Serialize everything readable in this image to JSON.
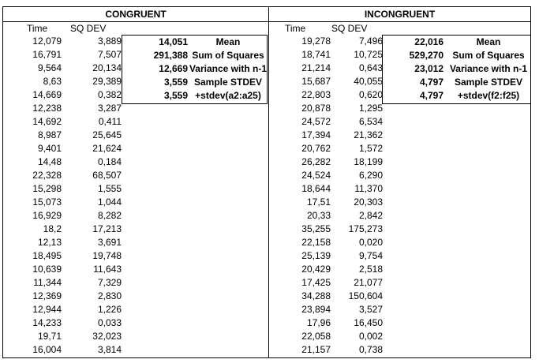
{
  "congruent": {
    "title": "CONGRUENT",
    "col_time": "Time",
    "col_sq": "SQ DEV",
    "rows": [
      [
        "12,079",
        "3,889"
      ],
      [
        "16,791",
        "7,507"
      ],
      [
        "9,564",
        "20,134"
      ],
      [
        "8,63",
        "29,389"
      ],
      [
        "14,669",
        "0,382"
      ],
      [
        "12,238",
        "3,287"
      ],
      [
        "14,692",
        "0,411"
      ],
      [
        "8,987",
        "25,645"
      ],
      [
        "9,401",
        "21,624"
      ],
      [
        "14,48",
        "0,184"
      ],
      [
        "22,328",
        "68,507"
      ],
      [
        "15,298",
        "1,555"
      ],
      [
        "15,073",
        "1,044"
      ],
      [
        "16,929",
        "8,282"
      ],
      [
        "18,2",
        "17,213"
      ],
      [
        "12,13",
        "3,691"
      ],
      [
        "18,495",
        "19,748"
      ],
      [
        "10,639",
        "11,643"
      ],
      [
        "11,344",
        "7,329"
      ],
      [
        "12,369",
        "2,830"
      ],
      [
        "12,944",
        "1,226"
      ],
      [
        "14,233",
        "0,033"
      ],
      [
        "19,71",
        "32,023"
      ],
      [
        "16,004",
        "3,814"
      ]
    ],
    "stats": [
      {
        "value": "14,051",
        "label": "Mean"
      },
      {
        "value": "291,388",
        "label": "Sum of Squares"
      },
      {
        "value": "12,669",
        "label": "Variance with n-1"
      },
      {
        "value": "3,559",
        "label": "Sample STDEV"
      },
      {
        "value": "3,559",
        "label": "+stdev(a2:a25)"
      }
    ]
  },
  "incongruent": {
    "title": "INCONGRUENT",
    "col_time": "Time",
    "col_sq": "SQ DEV",
    "rows": [
      [
        "19,278",
        "7,496"
      ],
      [
        "18,741",
        "10,725"
      ],
      [
        "21,214",
        "0,643"
      ],
      [
        "15,687",
        "40,055"
      ],
      [
        "22,803",
        "0,620"
      ],
      [
        "20,878",
        "1,295"
      ],
      [
        "24,572",
        "6,534"
      ],
      [
        "17,394",
        "21,362"
      ],
      [
        "20,762",
        "1,572"
      ],
      [
        "26,282",
        "18,199"
      ],
      [
        "24,524",
        "6,290"
      ],
      [
        "18,644",
        "11,370"
      ],
      [
        "17,51",
        "20,303"
      ],
      [
        "20,33",
        "2,842"
      ],
      [
        "35,255",
        "175,273"
      ],
      [
        "22,158",
        "0,020"
      ],
      [
        "25,139",
        "9,754"
      ],
      [
        "20,429",
        "2,518"
      ],
      [
        "17,425",
        "21,077"
      ],
      [
        "34,288",
        "150,604"
      ],
      [
        "23,894",
        "3,527"
      ],
      [
        "17,96",
        "16,450"
      ],
      [
        "22,058",
        "0,002"
      ],
      [
        "21,157",
        "0,738"
      ]
    ],
    "stats": [
      {
        "value": "22,016",
        "label": "Mean"
      },
      {
        "value": "529,270",
        "label": "Sum of Squares"
      },
      {
        "value": "23,012",
        "label": "Variance with n-1"
      },
      {
        "value": "4,797",
        "label": "Sample STDEV"
      },
      {
        "value": "4,797",
        "label": "+stdev(f2:f25)"
      }
    ]
  }
}
